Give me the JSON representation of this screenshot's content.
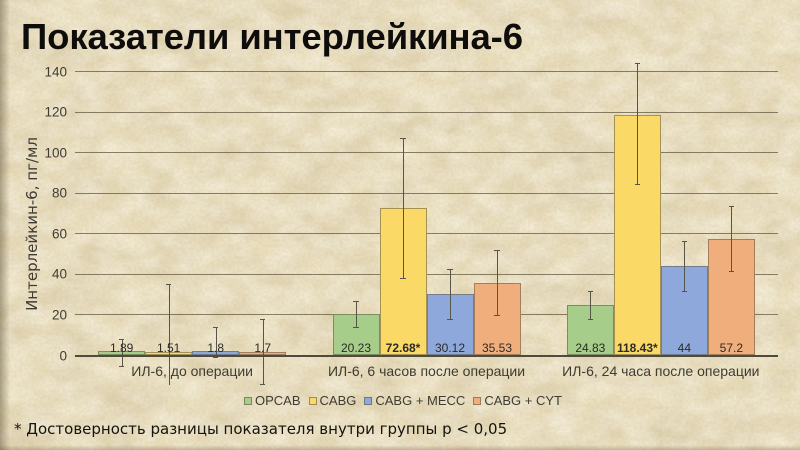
{
  "slide": {
    "title": "Показатели интерлейкина-6",
    "footnote": "* Достоверность разницы показателя внутри группы p < 0,05"
  },
  "chart_data": {
    "type": "bar",
    "title": "",
    "xlabel": "",
    "ylabel": "Интерлейкин-6, пг/мл",
    "ylim": [
      0,
      140
    ],
    "yticks": [
      0,
      20,
      40,
      60,
      80,
      100,
      120,
      140
    ],
    "grid": true,
    "legend_position": "bottom",
    "error_bars": true,
    "categories": [
      "ИЛ-6, до операции",
      "ИЛ-6, 6 часов после операции",
      "ИЛ-6, 24 часа после операции"
    ],
    "series": [
      {
        "name": "OPCAB",
        "color": "#a6cd8a",
        "values": [
          1.89,
          20.23,
          24.83
        ],
        "labels": [
          "1.89",
          "20.23",
          "24.83"
        ],
        "err_up": [
          6.0,
          6.5,
          6.9
        ],
        "err_dn": [
          7.3,
          6.5,
          6.9
        ]
      },
      {
        "name": "CABG",
        "color": "#fad966",
        "values": [
          1.51,
          72.68,
          118.43
        ],
        "labels": [
          "1.51",
          "72.68*",
          "118.43*"
        ],
        "err_up": [
          33.5,
          34.5,
          25.7
        ],
        "err_dn": [
          33.5,
          34.5,
          33.9
        ]
      },
      {
        "name": "CABG + MECC",
        "color": "#8ea8db",
        "values": [
          1.8,
          30.12,
          44
        ],
        "labels": [
          "1.8",
          "30.12",
          "44"
        ],
        "err_up": [
          11.9,
          12.5,
          12.3
        ],
        "err_dn": [
          2.9,
          12.5,
          12.3
        ]
      },
      {
        "name": "CABG + CYT",
        "color": "#f1ae7d",
        "values": [
          1.7,
          35.53,
          57.2
        ],
        "labels": [
          "1.7",
          "35.53",
          "57.2"
        ],
        "err_up": [
          16.0,
          16.0,
          16.2
        ],
        "err_dn": [
          16.0,
          16.0,
          15.6
        ]
      }
    ]
  }
}
